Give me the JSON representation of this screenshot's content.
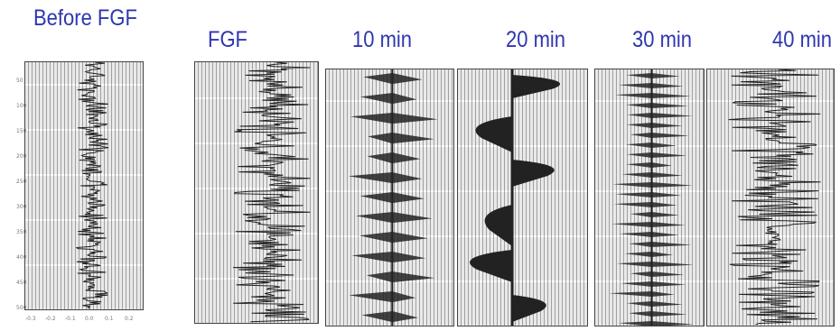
{
  "before": {
    "title": "Before FGF"
  },
  "panels": [
    {
      "title": "FGF"
    },
    {
      "title": "10 min"
    },
    {
      "title": "20 min"
    },
    {
      "title": "30 min"
    },
    {
      "title": "40 min"
    }
  ],
  "axis": {
    "y_ticks": [
      "50",
      "100",
      "150",
      "200",
      "250",
      "300",
      "350",
      "400",
      "450",
      "500"
    ],
    "x_ticks": [
      "-0.3",
      "-0.2",
      "-0.1",
      "0.0",
      "0.1",
      "0.2"
    ]
  },
  "colors": {
    "title": "#2f36b0",
    "trace": "#222222",
    "panel_bg": "#e9e9e9"
  }
}
